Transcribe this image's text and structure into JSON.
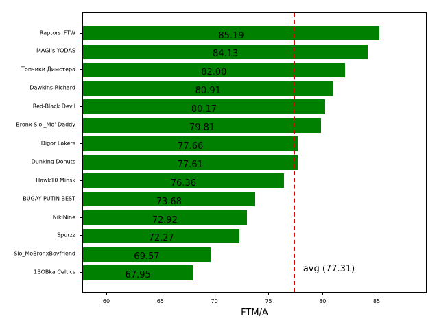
{
  "chart_data": {
    "type": "bar",
    "orientation": "horizontal",
    "title": "",
    "xlabel": "FTM/A",
    "ylabel": "",
    "xlim": [
      57.78,
      89.63
    ],
    "xticks": [
      60,
      65,
      70,
      75,
      80,
      85
    ],
    "grid": false,
    "bar_color": "#008000",
    "categories": [
      "Raptors_FTW",
      "MAGI's YODAS",
      "Топчики Димстера",
      "Dawkins Richard",
      "Red-Black Devil",
      "Bronx Slo'_Mo' Daddy",
      "Digor Lakers",
      "Dunking Donuts",
      "Hawk10 Minsk",
      "BUGAY PUTIN BEST",
      "NikiNine",
      "Spurzz",
      "Slo_MoBronxBoyfriend",
      "1BOBka Celtics"
    ],
    "values": [
      85.19,
      84.13,
      82.0,
      80.91,
      80.17,
      79.81,
      77.66,
      77.61,
      76.36,
      73.68,
      72.92,
      72.27,
      69.57,
      67.95
    ],
    "value_labels": [
      "85.19",
      "84.13",
      "82.00",
      "80.91",
      "80.17",
      "79.81",
      "77.66",
      "77.61",
      "76.36",
      "73.68",
      "72.92",
      "72.27",
      "69.57",
      "67.95"
    ],
    "annotations": [
      {
        "type": "vline",
        "x": 77.31,
        "style": "dashed",
        "color": "#e00000",
        "label": "avg (77.31)"
      }
    ]
  }
}
